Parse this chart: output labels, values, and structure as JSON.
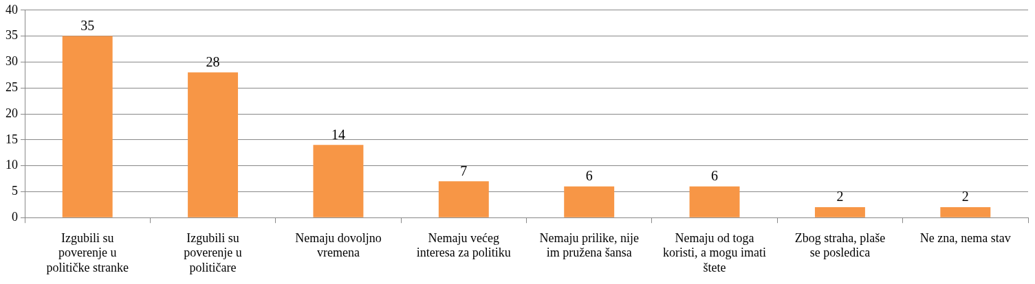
{
  "chart_data": {
    "type": "bar",
    "categories": [
      "Izgubili su poverenje u političke stranke",
      "Izgubili su poverenje u političare",
      "Nemaju dovoljno vremena",
      "Nemaju većeg interesa za politiku",
      "Nemaju prilike, nije im pružena šansa",
      "Nemaju od toga koristi, a mogu imati štete",
      "Zbog straha, plaše se posledica",
      "Ne zna, nema stav"
    ],
    "values": [
      35,
      28,
      14,
      7,
      6,
      6,
      2,
      2
    ],
    "color": "#f79646",
    "ylim": [
      0,
      40
    ],
    "yticks": [
      0,
      5,
      10,
      15,
      20,
      25,
      30,
      35,
      40
    ],
    "grid": "y",
    "data_labels": true
  }
}
